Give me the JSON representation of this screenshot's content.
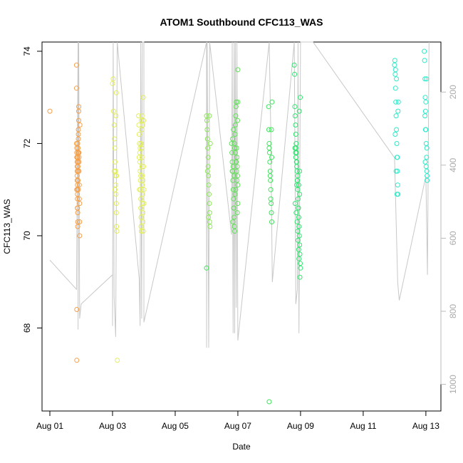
{
  "chart_data": {
    "type": "scatter",
    "title": "ATOM1 Southbound CFC113_WAS",
    "xlabel": "Date",
    "ylabel": "CFC113_WAS",
    "x_ticks": [
      "Aug 01",
      "Aug 03",
      "Aug 05",
      "Aug 07",
      "Aug 09",
      "Aug 11",
      "Aug 13"
    ],
    "x_tick_days": [
      1,
      3,
      5,
      7,
      9,
      11,
      13
    ],
    "xlim": [
      0.75,
      13.48
    ],
    "ylim": [
      66.2,
      74.2
    ],
    "y_ticks": [
      68,
      70,
      72,
      74
    ],
    "right_axis": {
      "ticks": [
        200,
        400,
        600,
        800,
        1000
      ],
      "lim": [
        1073,
        63
      ],
      "color": "#bbbbbb"
    },
    "grid": false,
    "legend": "none",
    "marker_colors": {
      "Aug 01": "#ff8000",
      "Aug 03": "#e6ff00",
      "Aug 07": "#26ff00",
      "Aug 09": "#00ff33",
      "Aug 12": "#00ffcc"
    },
    "series": [
      {
        "x": [
          1.0
        ],
        "y": [
          72.7
        ],
        "color": "#f5a04a"
      },
      {
        "x": [
          1.85,
          1.85,
          1.85,
          1.86,
          1.86,
          1.86,
          1.87,
          1.87,
          1.87,
          1.87,
          1.88,
          1.88,
          1.88,
          1.88,
          1.88,
          1.89,
          1.89,
          1.89,
          1.89,
          1.9,
          1.9,
          1.9,
          1.9,
          1.91,
          1.91,
          1.91,
          1.92,
          1.92,
          1.92,
          1.93,
          1.93,
          1.93,
          1.94,
          1.94,
          1.95,
          1.95,
          1.95,
          1.96,
          1.86,
          1.86,
          1.87,
          1.87,
          1.86,
          1.88,
          1.9,
          1.89,
          1.9,
          1.91,
          1.92,
          1.93
        ],
        "y": [
          73.7,
          73.2,
          72.0,
          71.9,
          71.8,
          71.7,
          71.6,
          71.5,
          71.4,
          71.2,
          71.1,
          71.0,
          70.9,
          70.8,
          70.6,
          70.5,
          70.3,
          70.2,
          71.7,
          71.6,
          71.5,
          71.4,
          71.8,
          72.3,
          72.2,
          72.1,
          72.8,
          72.7,
          72.5,
          71.8,
          71.6,
          71.4,
          71.1,
          70.8,
          70.7,
          70.3,
          70.0,
          72.4,
          68.4,
          67.3,
          71.7,
          71.3,
          71.0,
          70.6,
          71.9,
          72.0,
          71.2,
          71.0,
          71.8,
          71.7
        ],
        "color": "#f5a04a"
      },
      {
        "x": [
          3.0,
          3.02,
          3.03,
          3.05,
          3.06,
          3.07,
          3.08,
          3.09,
          3.1,
          3.1,
          3.11,
          3.12,
          3.12,
          3.13,
          3.14,
          3.15,
          3.05,
          3.08,
          3.1,
          3.11,
          3.12,
          3.13
        ],
        "y": [
          73.3,
          73.4,
          72.7,
          72.4,
          72.1,
          71.9,
          71.6,
          71.4,
          71.3,
          71.1,
          70.9,
          70.7,
          70.5,
          70.2,
          70.1,
          67.3,
          71.4,
          71.0,
          71.4,
          72.6,
          73.1,
          71.3
        ],
        "color": "#e3ef5c"
      },
      {
        "x": [
          3.83,
          3.84,
          3.85,
          3.86,
          3.87,
          3.87,
          3.88,
          3.89,
          3.89,
          3.9,
          3.9,
          3.91,
          3.91,
          3.92,
          3.92,
          3.93,
          3.93,
          3.94,
          3.94,
          3.95,
          3.95,
          3.96,
          3.96,
          3.97,
          3.97,
          3.98,
          3.98,
          3.99,
          3.99,
          4.0,
          3.85,
          3.88,
          3.91,
          3.94,
          3.97,
          4.0,
          3.86,
          3.9,
          3.93,
          3.96
        ],
        "y": [
          72.6,
          72.4,
          72.2,
          72.0,
          71.8,
          71.6,
          71.4,
          71.2,
          71.0,
          70.8,
          70.6,
          70.4,
          70.2,
          70.1,
          72.5,
          72.3,
          71.9,
          71.7,
          71.5,
          71.3,
          71.1,
          70.9,
          70.7,
          70.5,
          70.3,
          70.1,
          73.0,
          72.5,
          71.5,
          71.0,
          71.7,
          71.9,
          72.0,
          72.6,
          71.2,
          70.7,
          71.0,
          71.3,
          71.9,
          72.4
        ],
        "color": "#e3ef5c"
      },
      {
        "x": [
          6.0,
          6.01,
          6.02,
          6.03,
          6.04,
          6.05,
          6.05,
          6.06,
          6.07,
          6.08,
          6.09,
          6.1,
          6.1,
          6.11,
          6.12,
          6.03,
          6.06,
          6.09
        ],
        "y": [
          72.6,
          72.5,
          72.3,
          72.1,
          71.9,
          71.7,
          71.5,
          71.3,
          71.1,
          70.9,
          70.7,
          70.5,
          70.3,
          70.2,
          72.0,
          71.4,
          70.4,
          72.6
        ],
        "color": "#8ee95a"
      },
      {
        "x": [
          6.8,
          6.81,
          6.82,
          6.83,
          6.84,
          6.85,
          6.86,
          6.87,
          6.88,
          6.89,
          6.9,
          6.91,
          6.92,
          6.93,
          6.94,
          6.95,
          6.96,
          6.97,
          6.98,
          6.99,
          7.0,
          6.82,
          6.85,
          6.88,
          6.91,
          6.94,
          6.97,
          7.0,
          6.83,
          6.86,
          6.89,
          6.92,
          6.95,
          6.98,
          7.0,
          7.0,
          6.84,
          6.87,
          6.9,
          6.93,
          6.96,
          6.99
        ],
        "y": [
          72.0,
          71.8,
          71.6,
          71.4,
          71.2,
          71.0,
          70.8,
          70.6,
          70.4,
          70.2,
          70.1,
          72.2,
          72.4,
          72.6,
          72.8,
          72.9,
          71.9,
          71.7,
          71.5,
          71.3,
          71.1,
          71.4,
          71.5,
          71.3,
          70.9,
          71.6,
          71.2,
          70.7,
          72.1,
          72.3,
          72.0,
          71.8,
          71.6,
          70.5,
          73.6,
          72.9,
          70.3,
          70.6,
          71.9,
          71.0,
          71.4,
          72.5
        ],
        "color": "#63e05a"
      },
      {
        "x": [
          7.98,
          7.99,
          8.0,
          8.01,
          8.02,
          8.03,
          8.04,
          8.05,
          8.06,
          8.07,
          8.08,
          8.09,
          8.0,
          8.03,
          8.05,
          8.07,
          8.08
        ],
        "y": [
          72.8,
          72.3,
          72.0,
          71.8,
          71.6,
          71.4,
          71.2,
          71.0,
          70.7,
          70.5,
          70.3,
          72.9,
          71.9,
          71.3,
          70.8,
          72.3,
          71.7
        ],
        "color": "#3ee35b"
      },
      {
        "x": [
          8.8,
          8.81,
          8.82,
          8.83,
          8.84,
          8.85,
          8.86,
          8.87,
          8.88,
          8.89,
          8.9,
          8.91,
          8.92,
          8.93,
          8.94,
          8.95,
          8.96,
          8.97,
          8.98,
          8.99,
          9.0,
          8.82,
          8.85,
          8.88,
          8.91,
          8.94,
          8.97,
          8.83,
          8.86,
          8.89,
          8.92,
          8.95,
          8.98,
          8.84,
          8.87,
          8.9,
          8.93,
          8.96,
          8.99,
          8.85,
          8.88,
          8.91,
          8.94,
          8.97
        ],
        "y": [
          73.7,
          73.5,
          72.8,
          72.6,
          72.4,
          72.2,
          72.0,
          71.8,
          71.6,
          71.4,
          71.2,
          71.0,
          70.8,
          70.6,
          70.4,
          70.2,
          70.0,
          69.8,
          69.6,
          69.4,
          69.3,
          71.9,
          71.7,
          71.5,
          71.3,
          71.1,
          70.9,
          70.7,
          70.5,
          70.3,
          69.9,
          69.5,
          69.1,
          71.8,
          71.6,
          71.2,
          70.6,
          72.7,
          73.0,
          71.9,
          71.1,
          70.1,
          69.7,
          71.4
        ],
        "color": "#2ee56f"
      },
      {
        "x": [
          6.0,
          8.0
        ],
        "y": [
          69.3,
          66.4
        ],
        "color": "#3ee35b"
      },
      {
        "x": [
          12.0,
          12.01,
          12.02,
          12.03,
          12.04,
          12.05,
          12.06,
          12.07,
          12.08,
          12.09,
          12.1,
          12.11,
          12.12,
          12.02,
          12.05,
          12.08,
          12.11,
          12.03,
          12.06,
          12.09
        ],
        "y": [
          73.7,
          73.8,
          73.5,
          73.2,
          72.9,
          72.6,
          72.3,
          72.0,
          71.7,
          71.4,
          71.1,
          70.9,
          72.9,
          72.2,
          71.4,
          70.9,
          72.7,
          73.6,
          73.4,
          71.7
        ],
        "color": "#2ee9c8"
      },
      {
        "x": [
          12.95,
          12.96,
          12.97,
          12.98,
          12.99,
          13.0,
          13.01,
          13.02,
          13.03,
          13.04,
          12.97,
          13.0,
          13.03,
          12.98,
          13.01,
          13.04,
          12.99,
          13.02
        ],
        "y": [
          74.0,
          73.8,
          73.4,
          73.0,
          72.7,
          72.3,
          72.0,
          71.7,
          71.4,
          71.2,
          72.6,
          72.9,
          71.9,
          71.6,
          71.5,
          71.3,
          72.3,
          73.4
        ],
        "color": "#2ee9c8"
      }
    ],
    "altitude_track": {
      "color": "#c8c8c8",
      "x": [
        1.0,
        1.85,
        1.9,
        1.9,
        1.92,
        1.95,
        2.0,
        3.0,
        3.0,
        3.02,
        3.05,
        3.1,
        3.15,
        3.85,
        3.88,
        3.9,
        3.9,
        3.93,
        3.95,
        4.0,
        4.0,
        6.0,
        6.0,
        6.02,
        6.05,
        6.07,
        6.1,
        6.8,
        6.82,
        6.85,
        6.88,
        6.9,
        6.92,
        6.95,
        6.97,
        7.0,
        8.0,
        8.05,
        8.1,
        8.8,
        8.85,
        8.9,
        8.92,
        8.95,
        9.0,
        9.4,
        12.0,
        12.1,
        12.15,
        13.0,
        13.05,
        13.1
      ],
      "y": [
        660,
        740,
        63,
        850,
        63,
        820,
        780,
        700,
        840,
        63,
        760,
        870,
        63,
        710,
        840,
        63,
        63,
        820,
        63,
        63,
        830,
        63,
        900,
        63,
        560,
        900,
        63,
        590,
        63,
        860,
        63,
        860,
        63,
        790,
        63,
        880,
        63,
        300,
        720,
        63,
        780,
        740,
        63,
        860,
        63,
        63,
        380,
        720,
        770,
        430,
        700,
        63
      ]
    }
  }
}
